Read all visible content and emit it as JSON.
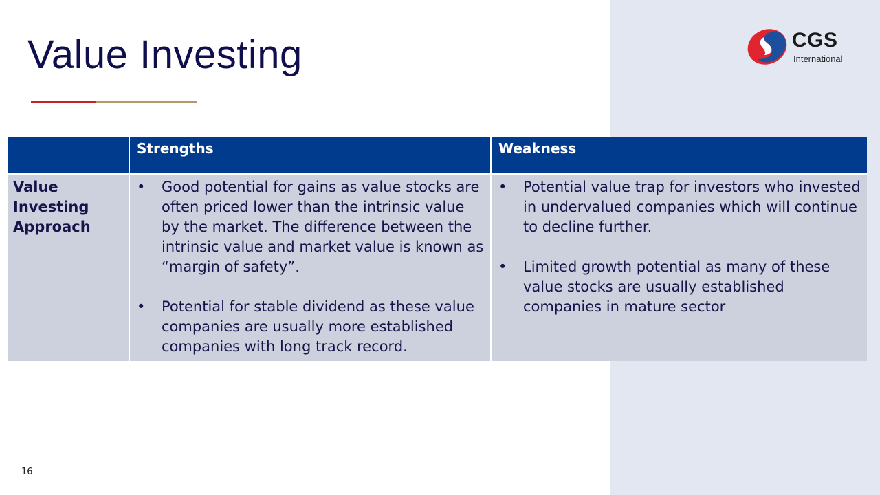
{
  "title": "Value Investing",
  "logo": {
    "name": "CGS",
    "subtitle": "International",
    "colors": {
      "red": "#e0252e",
      "blue": "#1d4f9c"
    }
  },
  "table": {
    "headers": [
      "",
      "Strengths",
      "Weakness"
    ],
    "row_header": "Value Investing Approach",
    "strengths": [
      "Good potential for gains as value stocks are often priced lower than the intrinsic value by the market. The difference between the intrinsic value and market value is known as “margin of safety”.",
      "Potential for stable dividend as these value companies are usually more established companies with long track record."
    ],
    "weaknesses": [
      "Potential value trap for investors who invested in undervalued companies which will continue to decline further.",
      "Limited growth potential as many of these value stocks are usually established companies in mature sector"
    ]
  },
  "colors": {
    "header": "#003b8e",
    "cell": "#cdd1de",
    "side_panel": "#e3e7f2"
  },
  "page_number": "16"
}
